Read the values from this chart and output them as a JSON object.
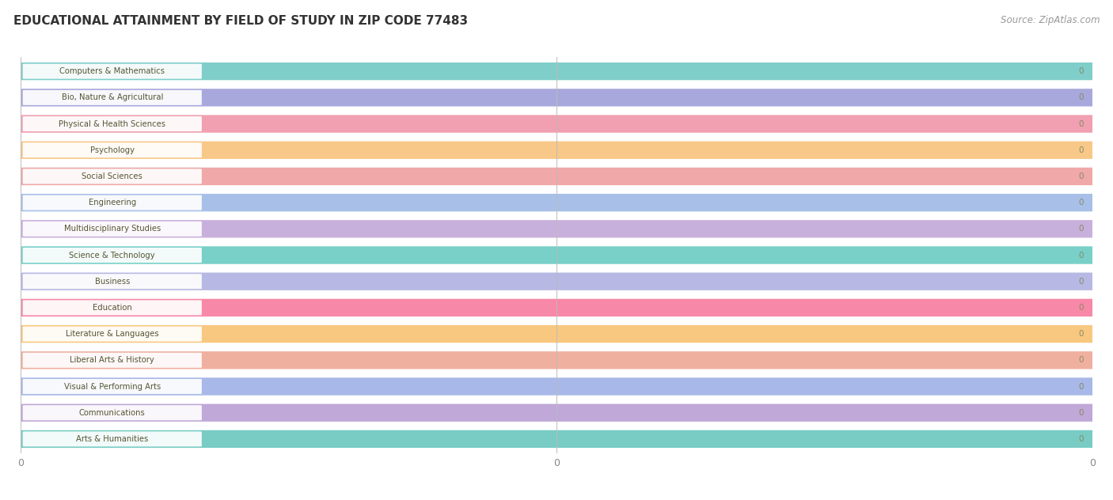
{
  "title": "EDUCATIONAL ATTAINMENT BY FIELD OF STUDY IN ZIP CODE 77483",
  "source": "Source: ZipAtlas.com",
  "categories": [
    "Computers & Mathematics",
    "Bio, Nature & Agricultural",
    "Physical & Health Sciences",
    "Psychology",
    "Social Sciences",
    "Engineering",
    "Multidisciplinary Studies",
    "Science & Technology",
    "Business",
    "Education",
    "Literature & Languages",
    "Liberal Arts & History",
    "Visual & Performing Arts",
    "Communications",
    "Arts & Humanities"
  ],
  "values": [
    0,
    0,
    0,
    0,
    0,
    0,
    0,
    0,
    0,
    0,
    0,
    0,
    0,
    0,
    0
  ],
  "bar_colors": [
    "#80ceca",
    "#a8a8dc",
    "#f0a0b0",
    "#f8c888",
    "#f0a8a8",
    "#a8c0e8",
    "#c8b0dc",
    "#78d0c8",
    "#b8b8e4",
    "#f888a8",
    "#f8c880",
    "#f0b0a0",
    "#a8b8e8",
    "#c0a8d8",
    "#78ccc4"
  ],
  "xlim_data": [
    0,
    1
  ],
  "background_color": "#ffffff",
  "row_bg_light": "#f0f0f0",
  "row_bg_dark": "#e4e4e4",
  "title_fontsize": 11,
  "source_fontsize": 8.5,
  "bar_height": 0.72,
  "label_text_color": "#555533",
  "value_text_color": "#888866"
}
